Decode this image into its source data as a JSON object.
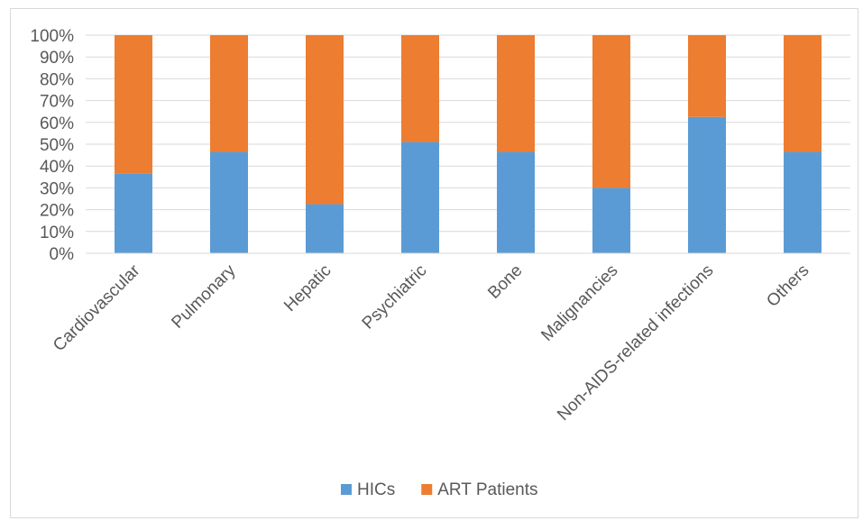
{
  "chart_data": {
    "type": "bar",
    "stacked": true,
    "percent_stacked": true,
    "categories": [
      "Cardiovascular",
      "Pulmonary",
      "Hepatic",
      "Psychiatric",
      "Bone",
      "Malignancies",
      "Non-AIDS-related infections",
      "Others"
    ],
    "series": [
      {
        "name": "HICs",
        "color": "#5b9bd5",
        "values": [
          36.5,
          46.5,
          22.5,
          51,
          46.5,
          30,
          62.5,
          46.5
        ]
      },
      {
        "name": "ART Patients",
        "color": "#ed7d31",
        "values": [
          63.5,
          53.5,
          77.5,
          49,
          53.5,
          70,
          37.5,
          53.5
        ]
      }
    ],
    "y_ticks": [
      "0%",
      "10%",
      "20%",
      "30%",
      "40%",
      "50%",
      "60%",
      "70%",
      "80%",
      "90%",
      "100%"
    ],
    "ylim": [
      0,
      100
    ],
    "grid": true,
    "gridline_color": "#d9d9d9",
    "legend_position": "bottom"
  }
}
